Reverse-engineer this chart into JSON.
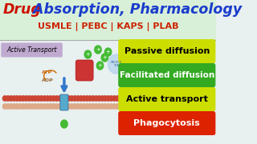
{
  "title_red": "Drug",
  "title_blue": " Absorption, Pharmacology",
  "subtitle": "USMLE | PEBC | KAPS | PLAB",
  "header_bg": "#d8f0d8",
  "body_bg": "#e8f0f0",
  "title_color_red": "#cc1100",
  "title_color_blue": "#1a3ccc",
  "subtitle_color": "#cc2200",
  "active_transport_label": "Active Transport",
  "active_transport_bg": "#c0aad0",
  "labels": [
    "Passive diffusion",
    "Facilitated diffusion",
    "Active transport",
    "Phagocytosis"
  ],
  "label_colors": [
    "#ccdd00",
    "#33aa22",
    "#ccdd00",
    "#dd2200"
  ],
  "label_text_colors": [
    "#000000",
    "#ffffff",
    "#000000",
    "#ffffff"
  ],
  "membrane_top_color": "#cc4433",
  "membrane_bot_color": "#ddaa88",
  "channel_color": "#55aacc",
  "arrow_color": "#3377cc",
  "atp_color": "#cc6600",
  "adp_color": "#996633",
  "mol_color": "#44bb33",
  "separator_color": "#aaaaaa"
}
